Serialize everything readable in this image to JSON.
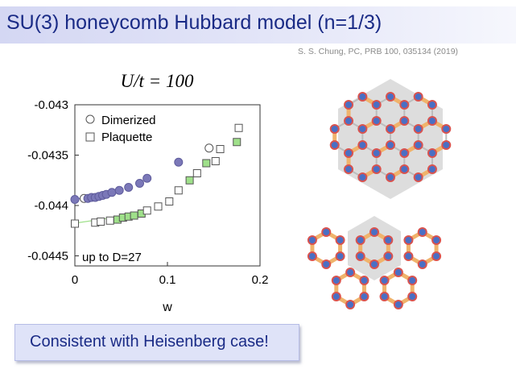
{
  "slide": {
    "title": "SU(3) honeycomb Hubbard model (n=1/3)",
    "citation": "S. S. Chung, PC, PRB 100, 035134 (2019)",
    "callout": "Consistent with Heisenberg case!"
  },
  "chart_data": {
    "type": "scatter",
    "title": "U/t = 100",
    "xlabel": "w",
    "ylabel": "",
    "xlim": [
      0,
      0.2
    ],
    "ylim": [
      -0.0446,
      -0.043
    ],
    "x_ticks": [
      "0",
      "0.1",
      "0.2"
    ],
    "y_ticks": [
      "-0.043",
      "-0.0435",
      "-0.044",
      "-0.0445"
    ],
    "annotation": "up to D=27",
    "legend": {
      "placement": "top-left",
      "entries": [
        "Dimerized",
        "Plaquette"
      ]
    },
    "colors": {
      "dimerized": "#7b78b8",
      "plaquette": "#9fe08a",
      "axis": "#333333"
    },
    "series": [
      {
        "name": "Dimerized",
        "marker": "circle",
        "points": [
          [
            0.0,
            -0.04394
          ],
          [
            0.01,
            -0.04393
          ],
          [
            0.014,
            -0.04393
          ],
          [
            0.018,
            -0.04392
          ],
          [
            0.022,
            -0.04392
          ],
          [
            0.026,
            -0.04391
          ],
          [
            0.03,
            -0.0439
          ],
          [
            0.034,
            -0.04389
          ],
          [
            0.04,
            -0.04387
          ],
          [
            0.048,
            -0.04385
          ],
          [
            0.058,
            -0.04382
          ],
          [
            0.07,
            -0.04378
          ],
          [
            0.078,
            -0.04373
          ],
          [
            0.112,
            -0.04357
          ],
          [
            0.145,
            -0.04343
          ]
        ],
        "filled": [
          true,
          false,
          true,
          true,
          true,
          true,
          true,
          true,
          true,
          true,
          true,
          true,
          true,
          true,
          false
        ]
      },
      {
        "name": "Plaquette",
        "marker": "square",
        "points": [
          [
            0.0,
            -0.04418
          ],
          [
            0.022,
            -0.04417
          ],
          [
            0.028,
            -0.04416
          ],
          [
            0.038,
            -0.04415
          ],
          [
            0.046,
            -0.04414
          ],
          [
            0.052,
            -0.04412
          ],
          [
            0.058,
            -0.04411
          ],
          [
            0.064,
            -0.0441
          ],
          [
            0.072,
            -0.04408
          ],
          [
            0.078,
            -0.04405
          ],
          [
            0.09,
            -0.04401
          ],
          [
            0.102,
            -0.04396
          ],
          [
            0.112,
            -0.04385
          ],
          [
            0.124,
            -0.04375
          ],
          [
            0.132,
            -0.04368
          ],
          [
            0.142,
            -0.04358
          ],
          [
            0.152,
            -0.04356
          ],
          [
            0.157,
            -0.04344
          ],
          [
            0.175,
            -0.04337
          ],
          [
            0.177,
            -0.04323
          ]
        ],
        "filled": [
          false,
          false,
          false,
          false,
          true,
          true,
          true,
          true,
          true,
          false,
          false,
          false,
          false,
          true,
          false,
          true,
          false,
          false,
          true,
          false
        ]
      }
    ]
  }
}
